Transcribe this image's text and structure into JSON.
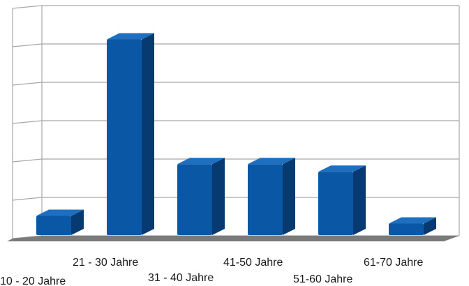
{
  "chart_data": {
    "type": "bar",
    "title": "",
    "xlabel": "",
    "ylabel": "",
    "categories": [
      "10 - 20 Jahre",
      "21 - 30 Jahre",
      "31 - 40 Jahre",
      "41-50 Jahre",
      "51-60 Jahre",
      "61-70 Jahre"
    ],
    "values": [
      0.5,
      5.1,
      1.85,
      1.85,
      1.65,
      0.3
    ],
    "ylim": [
      0,
      6
    ],
    "gridlines": 6,
    "grid": true,
    "legend": "none",
    "three_d": true,
    "colors": {
      "bar_front": "#0a57a5",
      "bar_side": "#083a72",
      "bar_top": "#1e6fc0",
      "floor": "#7a7a7a",
      "grid": "#a8a8a8"
    }
  }
}
